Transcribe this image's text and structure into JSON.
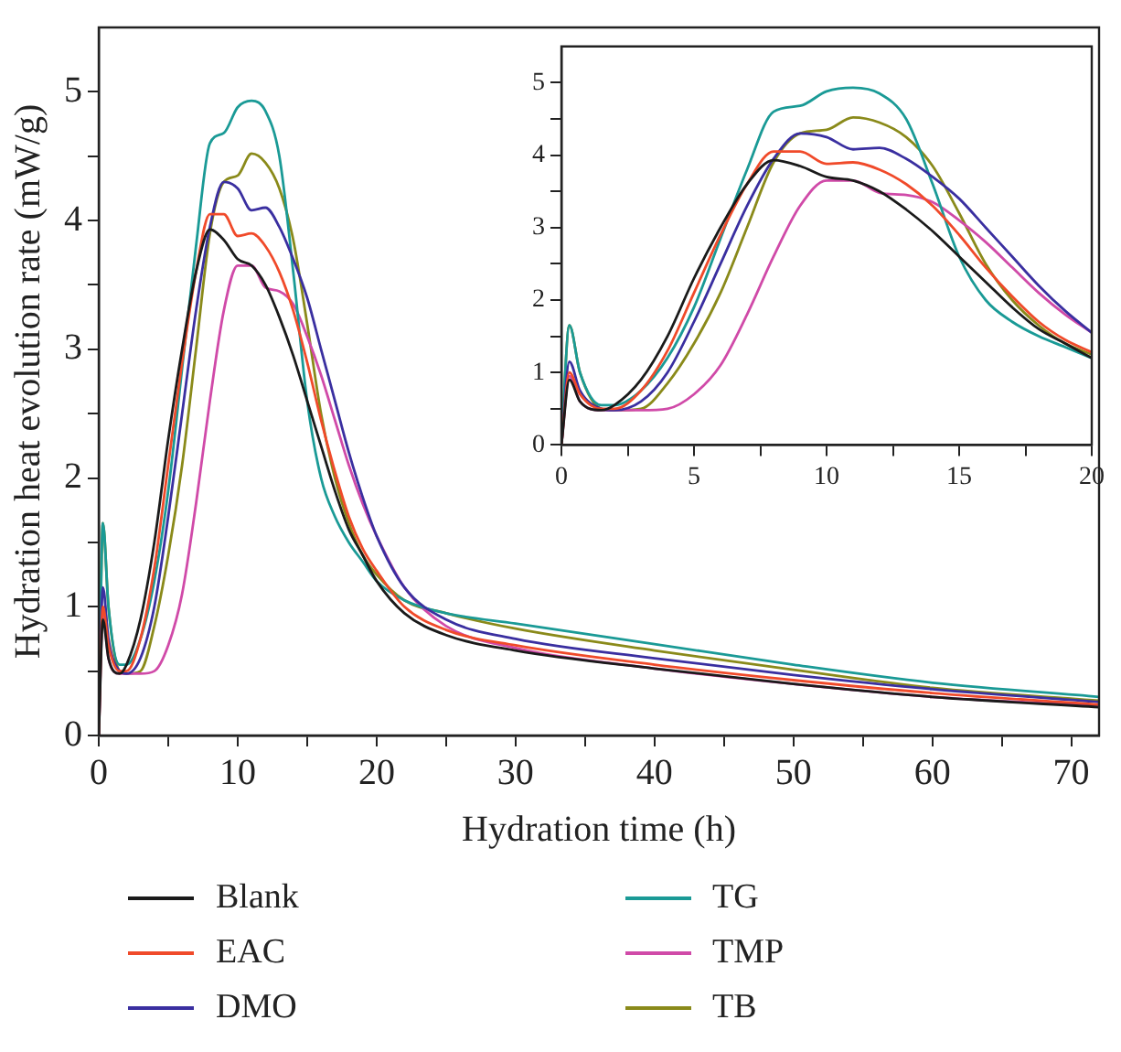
{
  "chart_data": [
    {
      "type": "line",
      "xlabel": "Hydration time (h)",
      "ylabel": "Hydration heat evolution rate (mW/g)",
      "legend": "bottom",
      "grid": false,
      "marker": "none",
      "line_style": "solid",
      "xlim": [
        0,
        72
      ],
      "ylim": [
        0,
        5.5
      ],
      "xticks": [
        0,
        {
          "value": 5,
          "label": null
        },
        10,
        {
          "value": 15,
          "label": null
        },
        20,
        {
          "value": 25,
          "label": null
        },
        30,
        {
          "value": 35,
          "label": null
        },
        40,
        {
          "value": 45,
          "label": null
        },
        50,
        {
          "value": 55,
          "label": null
        },
        60,
        {
          "value": 65,
          "label": null
        },
        70
      ],
      "yticks": [
        0,
        {
          "value": 0.5,
          "label": null
        },
        1,
        {
          "value": 1.5,
          "label": null
        },
        2,
        {
          "value": 2.5,
          "label": null
        },
        3,
        {
          "value": 3.5,
          "label": null
        },
        4,
        {
          "value": 4.5,
          "label": null
        },
        5
      ],
      "x": [
        0,
        0.3,
        0.7,
        1.5,
        2,
        3,
        4,
        5,
        6,
        7,
        8,
        9,
        10,
        11,
        12,
        13,
        14,
        15,
        16,
        17,
        18,
        19,
        20,
        22,
        25,
        30,
        40,
        50,
        60,
        72
      ],
      "series": [
        {
          "name": "Blank",
          "color": "#1a1a1a",
          "values": [
            0,
            0.9,
            0.6,
            0.48,
            0.55,
            0.9,
            1.5,
            2.3,
            3.0,
            3.6,
            3.93,
            3.85,
            3.7,
            3.65,
            3.5,
            3.25,
            2.95,
            2.6,
            2.25,
            1.9,
            1.6,
            1.4,
            1.2,
            0.95,
            0.78,
            0.66,
            0.52,
            0.4,
            0.3,
            0.22
          ]
        },
        {
          "name": "EAC",
          "color": "#f04a2a",
          "values": [
            0,
            1.0,
            0.7,
            0.5,
            0.5,
            0.75,
            1.3,
            2.1,
            2.9,
            3.6,
            4.05,
            4.05,
            3.88,
            3.9,
            3.8,
            3.6,
            3.3,
            2.9,
            2.45,
            2.05,
            1.7,
            1.45,
            1.28,
            1.0,
            0.82,
            0.7,
            0.55,
            0.43,
            0.33,
            0.24
          ]
        },
        {
          "name": "DMO",
          "color": "#3a2fa0",
          "values": [
            0,
            1.15,
            0.75,
            0.5,
            0.48,
            0.6,
            1.0,
            1.7,
            2.5,
            3.3,
            3.95,
            4.3,
            4.25,
            4.08,
            4.1,
            3.95,
            3.7,
            3.4,
            3.0,
            2.6,
            2.2,
            1.85,
            1.55,
            1.15,
            0.9,
            0.75,
            0.6,
            0.47,
            0.36,
            0.26
          ]
        },
        {
          "name": "TG",
          "color": "#1a9a96",
          "values": [
            0,
            1.65,
            1.0,
            0.55,
            0.55,
            0.75,
            1.2,
            1.9,
            2.85,
            3.8,
            4.6,
            4.68,
            4.88,
            4.93,
            4.85,
            4.5,
            3.6,
            2.6,
            2.0,
            1.7,
            1.5,
            1.35,
            1.2,
            1.05,
            0.95,
            0.87,
            0.71,
            0.55,
            0.41,
            0.3
          ]
        },
        {
          "name": "TMP",
          "color": "#d04aa8",
          "values": [
            0,
            0.95,
            0.6,
            0.48,
            0.48,
            0.48,
            0.5,
            0.7,
            1.1,
            1.8,
            2.6,
            3.3,
            3.65,
            3.65,
            3.48,
            3.45,
            3.35,
            3.1,
            2.8,
            2.45,
            2.1,
            1.8,
            1.55,
            1.15,
            0.85,
            0.68,
            0.52,
            0.4,
            0.3,
            0.23
          ]
        },
        {
          "name": "TB",
          "color": "#8a8a1a",
          "values": [
            0,
            1.65,
            1.0,
            0.5,
            0.48,
            0.5,
            0.85,
            1.4,
            2.1,
            3.0,
            3.9,
            4.3,
            4.35,
            4.52,
            4.45,
            4.25,
            3.85,
            3.2,
            2.5,
            2.0,
            1.65,
            1.4,
            1.25,
            1.05,
            0.95,
            0.83,
            0.66,
            0.51,
            0.37,
            0.27
          ]
        }
      ]
    },
    {
      "type": "line",
      "grid": false,
      "marker": "none",
      "line_style": "solid",
      "xlim": [
        0,
        20
      ],
      "ylim": [
        0,
        5.5
      ],
      "xticks": [
        0,
        {
          "value": 2.5,
          "label": null
        },
        5,
        {
          "value": 7.5,
          "label": null
        },
        10,
        {
          "value": 12.5,
          "label": null
        },
        15,
        {
          "value": 17.5,
          "label": null
        },
        20
      ],
      "yticks": [
        0,
        {
          "value": 0.5,
          "label": null
        },
        1,
        {
          "value": 1.5,
          "label": null
        },
        2,
        {
          "value": 2.5,
          "label": null
        },
        3,
        {
          "value": 3.5,
          "label": null
        },
        4,
        {
          "value": 4.5,
          "label": null
        },
        5
      ],
      "x": [
        0,
        0.3,
        0.7,
        1.5,
        2,
        3,
        4,
        5,
        6,
        7,
        8,
        9,
        10,
        11,
        12,
        13,
        14,
        15,
        16,
        17,
        18,
        19,
        20
      ],
      "series": [
        {
          "color": "#1a1a1a",
          "values": [
            0,
            0.9,
            0.6,
            0.48,
            0.55,
            0.9,
            1.5,
            2.3,
            3.0,
            3.6,
            3.93,
            3.85,
            3.7,
            3.65,
            3.5,
            3.25,
            2.95,
            2.6,
            2.25,
            1.9,
            1.6,
            1.4,
            1.2
          ]
        },
        {
          "color": "#f04a2a",
          "values": [
            0,
            1.0,
            0.7,
            0.5,
            0.5,
            0.75,
            1.3,
            2.1,
            2.9,
            3.6,
            4.05,
            4.05,
            3.88,
            3.9,
            3.8,
            3.6,
            3.3,
            2.9,
            2.45,
            2.05,
            1.7,
            1.45,
            1.28
          ]
        },
        {
          "color": "#3a2fa0",
          "values": [
            0,
            1.15,
            0.75,
            0.5,
            0.48,
            0.6,
            1.0,
            1.7,
            2.5,
            3.3,
            3.95,
            4.3,
            4.25,
            4.08,
            4.1,
            3.95,
            3.7,
            3.4,
            3.0,
            2.6,
            2.2,
            1.85,
            1.55
          ]
        },
        {
          "color": "#1a9a96",
          "values": [
            0,
            1.65,
            1.0,
            0.55,
            0.55,
            0.75,
            1.2,
            1.9,
            2.85,
            3.8,
            4.6,
            4.68,
            4.88,
            4.93,
            4.85,
            4.5,
            3.6,
            2.6,
            2.0,
            1.7,
            1.5,
            1.35,
            1.2
          ]
        },
        {
          "color": "#d04aa8",
          "values": [
            0,
            0.95,
            0.6,
            0.48,
            0.48,
            0.48,
            0.5,
            0.7,
            1.1,
            1.8,
            2.6,
            3.3,
            3.65,
            3.65,
            3.48,
            3.45,
            3.35,
            3.1,
            2.8,
            2.45,
            2.1,
            1.8,
            1.55
          ]
        },
        {
          "color": "#8a8a1a",
          "values": [
            0,
            1.65,
            1.0,
            0.5,
            0.48,
            0.5,
            0.85,
            1.4,
            2.1,
            3.0,
            3.9,
            4.3,
            4.35,
            4.52,
            4.45,
            4.25,
            3.85,
            3.2,
            2.5,
            2.0,
            1.65,
            1.4,
            1.25
          ]
        }
      ]
    }
  ]
}
